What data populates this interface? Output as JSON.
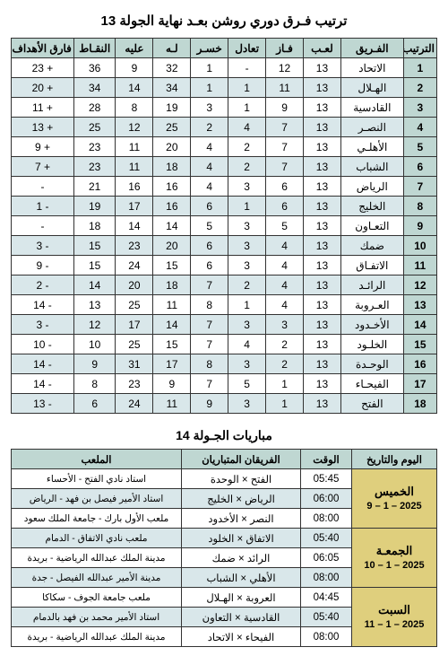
{
  "titles": {
    "main": "ترتيب فـرق دوري روشن بعـد نهاية الجولة 13",
    "fixtures": "مباريات الجـولة 14"
  },
  "standings": {
    "headers": {
      "rank": "الترتيب",
      "team": "الفـريق",
      "played": "لعـب",
      "won": "فـاز",
      "draw": "تعادل",
      "lost": "خسـر",
      "for": "لـه",
      "against": "عليه",
      "points": "النقـاط",
      "gd": "فارق الأهداف"
    },
    "rows": [
      {
        "rank": "1",
        "team": "الاتحاد",
        "p": "13",
        "w": "12",
        "d": "-",
        "l": "1",
        "f": "32",
        "a": "9",
        "pts": "36",
        "gd": "+ 23"
      },
      {
        "rank": "2",
        "team": "الهـلال",
        "p": "13",
        "w": "11",
        "d": "1",
        "l": "1",
        "f": "34",
        "a": "14",
        "pts": "34",
        "gd": "+ 20"
      },
      {
        "rank": "3",
        "team": "القادسية",
        "p": "13",
        "w": "9",
        "d": "1",
        "l": "3",
        "f": "19",
        "a": "8",
        "pts": "28",
        "gd": "+ 11"
      },
      {
        "rank": "4",
        "team": "النصـر",
        "p": "13",
        "w": "7",
        "d": "4",
        "l": "2",
        "f": "25",
        "a": "12",
        "pts": "25",
        "gd": "+ 13"
      },
      {
        "rank": "5",
        "team": "الأهلـي",
        "p": "13",
        "w": "7",
        "d": "2",
        "l": "4",
        "f": "20",
        "a": "11",
        "pts": "23",
        "gd": "+ 9"
      },
      {
        "rank": "6",
        "team": "الشباب",
        "p": "13",
        "w": "7",
        "d": "2",
        "l": "4",
        "f": "18",
        "a": "11",
        "pts": "23",
        "gd": "+ 7"
      },
      {
        "rank": "7",
        "team": "الرياض",
        "p": "13",
        "w": "6",
        "d": "3",
        "l": "4",
        "f": "16",
        "a": "16",
        "pts": "21",
        "gd": "-"
      },
      {
        "rank": "8",
        "team": "الخليج",
        "p": "13",
        "w": "6",
        "d": "1",
        "l": "6",
        "f": "16",
        "a": "17",
        "pts": "19",
        "gd": "- 1"
      },
      {
        "rank": "9",
        "team": "التعـاون",
        "p": "13",
        "w": "5",
        "d": "3",
        "l": "5",
        "f": "14",
        "a": "14",
        "pts": "18",
        "gd": "-"
      },
      {
        "rank": "10",
        "team": "ضمك",
        "p": "13",
        "w": "4",
        "d": "3",
        "l": "6",
        "f": "20",
        "a": "23",
        "pts": "15",
        "gd": "- 3"
      },
      {
        "rank": "11",
        "team": "الاتفـاق",
        "p": "13",
        "w": "4",
        "d": "3",
        "l": "6",
        "f": "15",
        "a": "24",
        "pts": "15",
        "gd": "- 9"
      },
      {
        "rank": "12",
        "team": "الرائـد",
        "p": "13",
        "w": "4",
        "d": "2",
        "l": "7",
        "f": "18",
        "a": "20",
        "pts": "14",
        "gd": "- 2"
      },
      {
        "rank": "13",
        "team": "العـروبة",
        "p": "13",
        "w": "4",
        "d": "1",
        "l": "8",
        "f": "11",
        "a": "25",
        "pts": "13",
        "gd": "- 14"
      },
      {
        "rank": "14",
        "team": "الأخـدود",
        "p": "13",
        "w": "3",
        "d": "3",
        "l": "7",
        "f": "14",
        "a": "17",
        "pts": "12",
        "gd": "- 3"
      },
      {
        "rank": "15",
        "team": "الخلـود",
        "p": "13",
        "w": "2",
        "d": "4",
        "l": "7",
        "f": "15",
        "a": "25",
        "pts": "10",
        "gd": "- 10"
      },
      {
        "rank": "16",
        "team": "الوحـدة",
        "p": "13",
        "w": "2",
        "d": "3",
        "l": "8",
        "f": "17",
        "a": "31",
        "pts": "9",
        "gd": "- 14"
      },
      {
        "rank": "17",
        "team": "الفيحـاء",
        "p": "13",
        "w": "1",
        "d": "5",
        "l": "7",
        "f": "9",
        "a": "23",
        "pts": "8",
        "gd": "- 14"
      },
      {
        "rank": "18",
        "team": "الفتح",
        "p": "13",
        "w": "1",
        "d": "3",
        "l": "9",
        "f": "11",
        "a": "24",
        "pts": "6",
        "gd": "- 13"
      }
    ]
  },
  "fixtures": {
    "headers": {
      "day": "اليوم والتاريخ",
      "time": "الوقت",
      "teams": "الفريقان المتباريان",
      "venue": "الملعب"
    },
    "days": [
      {
        "name": "الخميس",
        "date": "9 – 1 – 2025",
        "matches": [
          {
            "time": "05:45",
            "teams": "الفتح × الوحدة",
            "venue": "استاد نادي الفتح - الأحساء"
          },
          {
            "time": "06:00",
            "teams": "الرياض × الخليج",
            "venue": "استاد الأمير فيصل  بن فهد - الرياض"
          },
          {
            "time": "08:00",
            "teams": "النصر × الأخدود",
            "venue": "ملعب الأول بارك - جامعة الملك سعود"
          }
        ]
      },
      {
        "name": "الجمعـة",
        "date": "10 – 1 – 2025",
        "matches": [
          {
            "time": "05:40",
            "teams": "الاتفاق × الخلود",
            "venue": "ملعب نادي الاتفاق - الدمام"
          },
          {
            "time": "06:05",
            "teams": "الرائد × ضمك",
            "venue": "مدينة الملك عبدالله الرياضية - بريدة"
          },
          {
            "time": "08:00",
            "teams": "الأهلي × الشباب",
            "venue": "مدينة الأمير عبدالله الفيصل - جدة"
          }
        ]
      },
      {
        "name": "السبت",
        "date": "11 – 1 – 2025",
        "matches": [
          {
            "time": "04:45",
            "teams": "العروبة × الهـلال",
            "venue": "ملعب جامعة الجوف - سكاكا"
          },
          {
            "time": "05:40",
            "teams": "القادسية × التعاون",
            "venue": "استاد الأمير محمد بن فهد بالدمام"
          },
          {
            "time": "08:00",
            "teams": "الفيحاء × الاتحاد",
            "venue": "مدينة الملك عبدالله الرياضية - بريدة"
          }
        ]
      }
    ]
  },
  "colors": {
    "header_bg": "#bfd7d2",
    "shade_bg": "#d9e7ea",
    "day_bg": "#dfcf7d",
    "border": "#333333"
  }
}
